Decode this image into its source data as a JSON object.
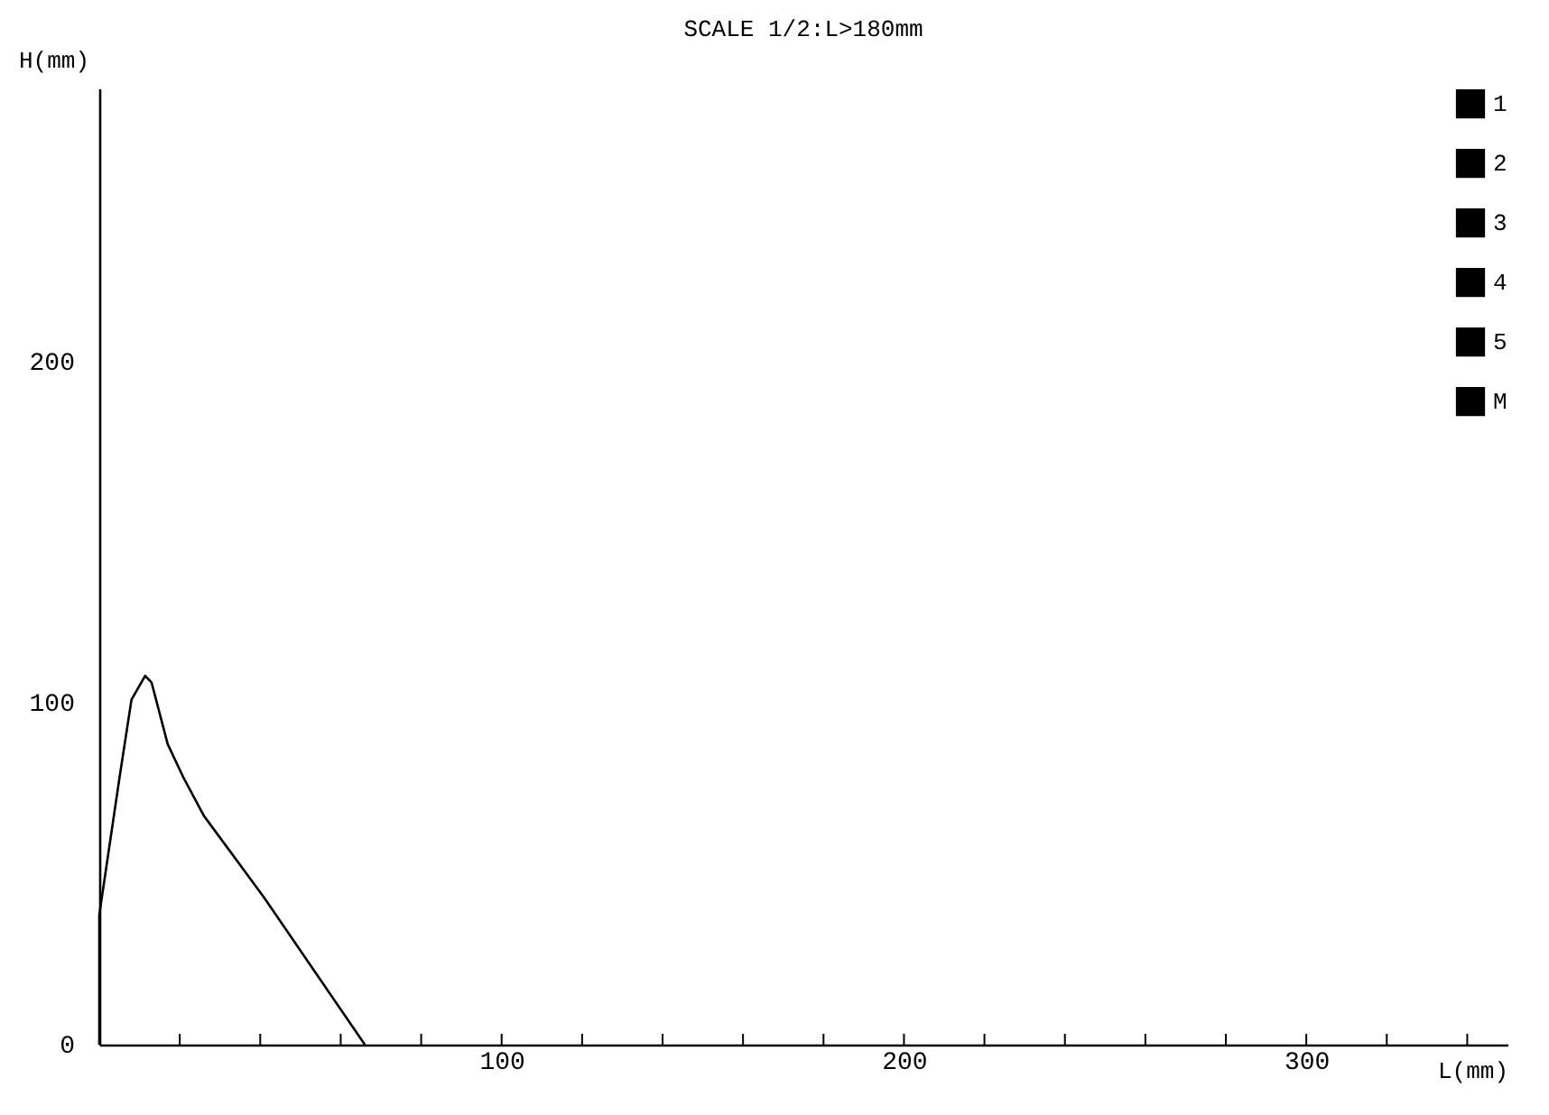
{
  "chart_data": {
    "type": "line",
    "title": "SCALE 1/2:L>180mm",
    "xlabel": "L(mm)",
    "ylabel": "H(mm)",
    "x": [
      0,
      0,
      5,
      8,
      11.4,
      13,
      17,
      21,
      26,
      41,
      66
    ],
    "series": [
      {
        "name": "1",
        "color": "#000000",
        "values": [
          0,
          38,
          78,
          101,
          108,
          106,
          88,
          78,
          67,
          43,
          0
        ]
      },
      {
        "name": "2",
        "color": "#000000",
        "values": [
          null,
          null,
          null,
          null,
          null,
          null,
          null,
          null,
          null,
          null,
          null
        ]
      },
      {
        "name": "3",
        "color": "#000000",
        "values": [
          null,
          null,
          null,
          null,
          null,
          null,
          null,
          null,
          null,
          null,
          null
        ]
      },
      {
        "name": "4",
        "color": "#000000",
        "values": [
          null,
          null,
          null,
          null,
          null,
          null,
          null,
          null,
          null,
          null,
          null
        ]
      },
      {
        "name": "5",
        "color": "#000000",
        "values": [
          null,
          null,
          null,
          null,
          null,
          null,
          null,
          null,
          null,
          null,
          null
        ]
      },
      {
        "name": "M",
        "color": "#000000",
        "values": [
          null,
          null,
          null,
          null,
          null,
          null,
          null,
          null,
          null,
          null,
          null
        ]
      }
    ],
    "xlim": [
      0,
      350
    ],
    "ylim": [
      0,
      280
    ],
    "xticks": [
      {
        "value": 20,
        "label": null
      },
      {
        "value": 40,
        "label": null
      },
      {
        "value": 60,
        "label": null
      },
      {
        "value": 80,
        "label": null
      },
      100,
      {
        "value": 120,
        "label": null
      },
      {
        "value": 140,
        "label": null
      },
      {
        "value": 160,
        "label": null
      },
      {
        "value": 180,
        "label": null
      },
      200,
      {
        "value": 220,
        "label": null
      },
      {
        "value": 240,
        "label": null
      },
      {
        "value": 260,
        "label": null
      },
      {
        "value": 280,
        "label": null
      },
      300,
      {
        "value": 320,
        "label": null
      },
      {
        "value": 340,
        "label": null
      }
    ],
    "yticks": [
      0,
      100,
      200
    ],
    "grid": false,
    "legend": "top right",
    "marker": "none",
    "line_style": "solid"
  }
}
